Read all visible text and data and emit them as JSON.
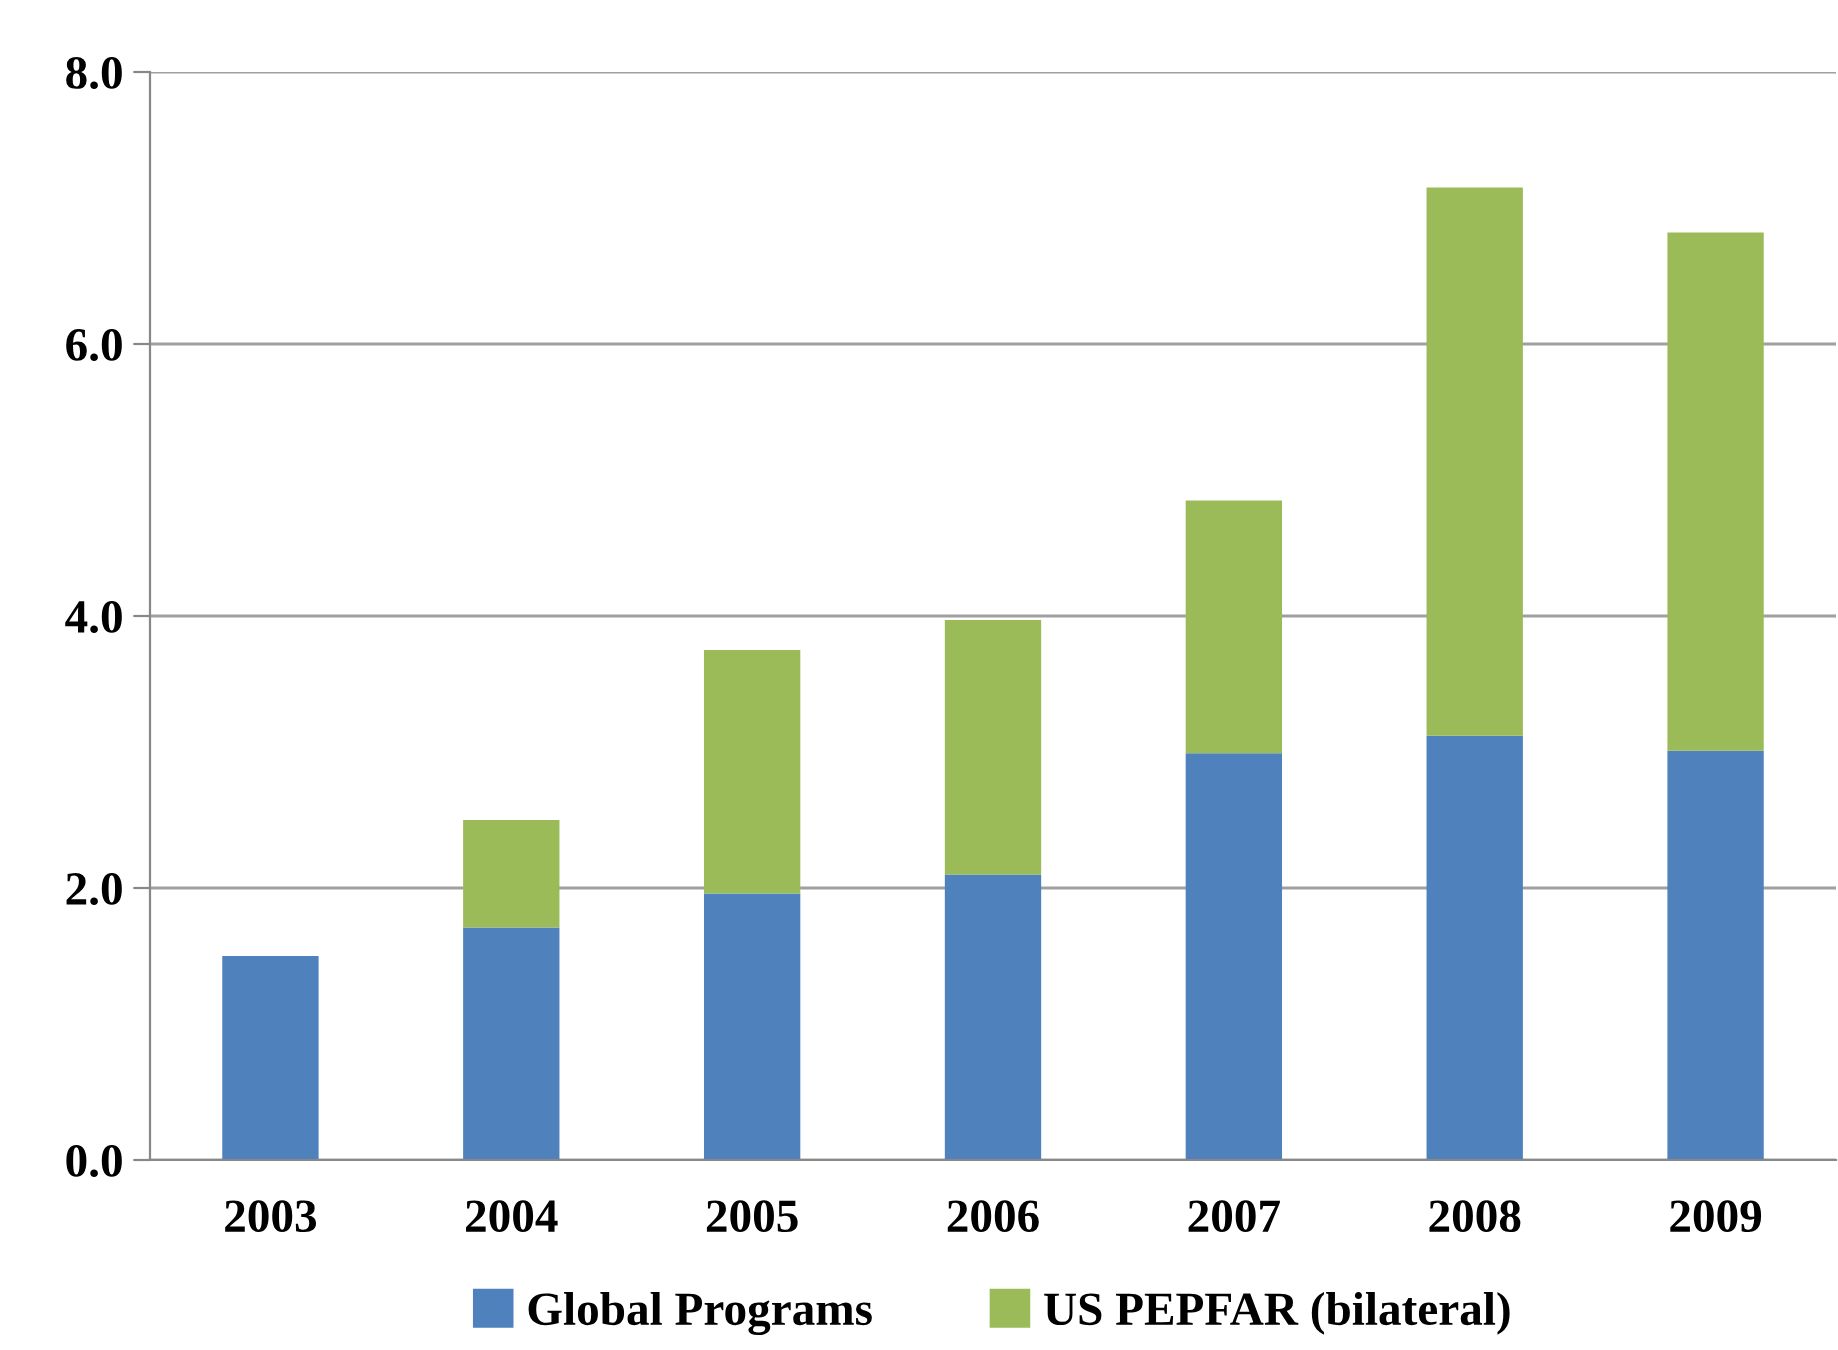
{
  "chart_data": {
    "type": "bar",
    "stacked": true,
    "categories": [
      "2003",
      "2004",
      "2005",
      "2006",
      "2007",
      "2008",
      "2009"
    ],
    "series": [
      {
        "name": "Global Programs",
        "color": "#4f81bd",
        "values": [
          1.5,
          1.71,
          1.96,
          2.1,
          2.99,
          3.12,
          3.01
        ]
      },
      {
        "name": "US PEPFAR (bilateral)",
        "color": "#9bbb59",
        "values": [
          0,
          0.79,
          1.79,
          1.87,
          1.86,
          4.03,
          3.81
        ]
      }
    ],
    "ylim": [
      0,
      8
    ],
    "yticks": [
      {
        "value": 0,
        "label": "0.0"
      },
      {
        "value": 2,
        "label": "2.0"
      },
      {
        "value": 4,
        "label": "4.0"
      },
      {
        "value": 6,
        "label": "6.0"
      },
      {
        "value": 8,
        "label": "8.0"
      }
    ],
    "grid": "y",
    "legend": "bottom"
  }
}
